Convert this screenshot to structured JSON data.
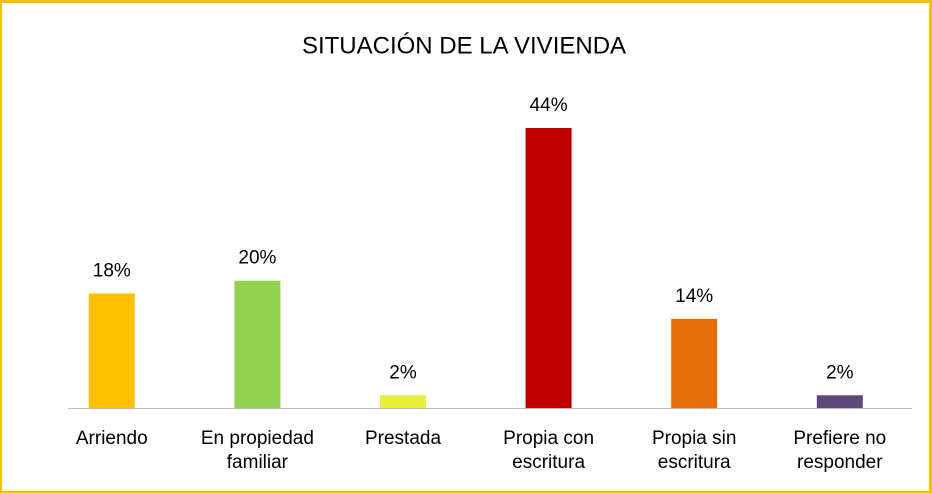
{
  "chart_data": {
    "type": "bar",
    "title": "SITUACIÓN DE LA VIVIENDA",
    "categories": [
      "Arriendo",
      "En propiedad familiar",
      "Prestada",
      "Propia con escritura",
      "Propia sin escritura",
      "Prefiere no responder"
    ],
    "values": [
      18,
      20,
      2,
      44,
      14,
      2
    ],
    "value_labels": [
      "18%",
      "20%",
      "2%",
      "44%",
      "14%",
      "2%"
    ],
    "colors": [
      "#FFC000",
      "#92D050",
      "#E6F03A",
      "#C00000",
      "#E46C0A",
      "#5F497A"
    ]
  }
}
